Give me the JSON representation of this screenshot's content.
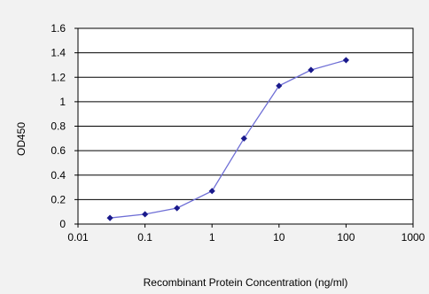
{
  "chart_data": {
    "type": "line",
    "title": "",
    "xlabel": "Recombinant Protein Concentration (ng/ml)",
    "ylabel": "OD450",
    "x_scale": "log",
    "xlim": [
      0.01,
      1000
    ],
    "ylim": [
      0,
      1.6
    ],
    "x_ticks": [
      "0.01",
      "0.1",
      "1",
      "10",
      "100",
      "1000"
    ],
    "y_ticks": [
      "0",
      "0.2",
      "0.4",
      "0.6",
      "0.8",
      "1",
      "1.2",
      "1.4",
      "1.6"
    ],
    "grid": "horizontal",
    "legend": "none",
    "line_color": "#6f6fd6",
    "marker_color": "#1a1a8c",
    "series": [
      {
        "x": [
          0.03,
          0.1,
          0.3,
          1,
          3,
          10,
          30,
          100
        ],
        "y": [
          0.05,
          0.08,
          0.13,
          0.27,
          0.7,
          1.13,
          1.26,
          1.34
        ]
      }
    ]
  }
}
